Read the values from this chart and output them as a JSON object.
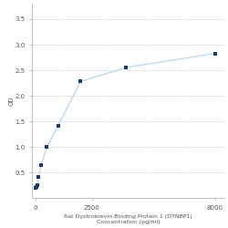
{
  "x": [
    0,
    31.25,
    62.5,
    125,
    250,
    500,
    1000,
    2000,
    4000,
    8000
  ],
  "y": [
    0.2,
    0.22,
    0.25,
    0.42,
    0.65,
    1.0,
    1.42,
    2.28,
    2.55,
    2.83
  ],
  "line_color": "#b8d4ea",
  "marker_color": "#1a3a6b",
  "marker_size": 3.5,
  "line_width": 0.9,
  "title_line1": "Rat Dystrobrevin Binding Protein 1 (DTNBP1)",
  "title_line2": "Concentration (pg/ml)",
  "ylabel": "OD",
  "ylim": [
    0.0,
    3.8
  ],
  "yticks": [
    0.5,
    1.0,
    1.5,
    2.0,
    2.5,
    3.0,
    3.5
  ],
  "xticks": [
    0,
    2500,
    8000
  ],
  "xticklabels": [
    "0",
    "2500",
    "8000"
  ],
  "xlim": [
    -150,
    8400
  ],
  "grid_color": "#cccccc",
  "background_color": "#ffffff",
  "text_color": "#555555",
  "title_fontsize": 4.5,
  "axis_fontsize": 5.0,
  "tick_fontsize": 5.0
}
